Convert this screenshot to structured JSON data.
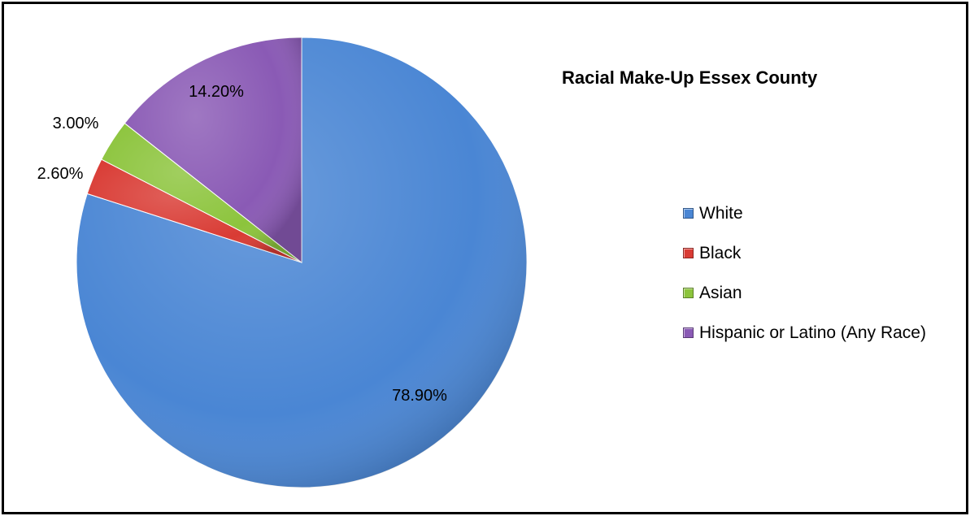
{
  "chart_data": {
    "type": "pie",
    "title": "Racial Make-Up Essex County",
    "slices": [
      {
        "label": "White",
        "value": 78.9,
        "display": "78.90%",
        "color": "#4A86D4"
      },
      {
        "label": "Black",
        "value": 2.6,
        "display": "2.60%",
        "color": "#D93B34"
      },
      {
        "label": "Asian",
        "value": 3.0,
        "display": "3.00%",
        "color": "#8CC43C"
      },
      {
        "label": "Hispanic or Latino (Any Race)",
        "value": 14.2,
        "display": "14.20%",
        "color": "#8A5AB5"
      }
    ],
    "legend_position": "right",
    "start_angle": "12 o'clock",
    "direction": "clockwise"
  }
}
